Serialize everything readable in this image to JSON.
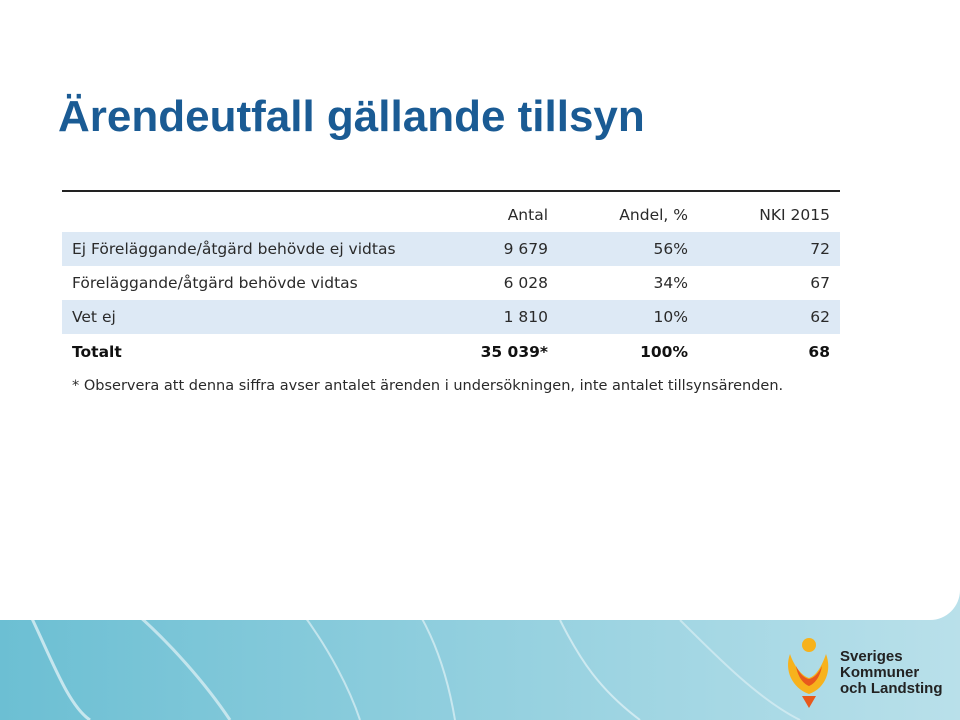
{
  "slide": {
    "title": "Ärendeutfall gällande tillsyn",
    "table": {
      "headers": [
        "Antal",
        "Andel, %",
        "NKI 2015"
      ],
      "rows": [
        {
          "label": "Ej Föreläggande/åtgärd behövde ej vidtas",
          "antal": "9 679",
          "andel": "56%",
          "nki": "72"
        },
        {
          "label": "Föreläggande/åtgärd behövde vidtas",
          "antal": "6 028",
          "andel": "34%",
          "nki": "67"
        },
        {
          "label": "Vet ej",
          "antal": "1 810",
          "andel": "10%",
          "nki": "62"
        }
      ],
      "total": {
        "label": "Totalt",
        "antal": "35 039*",
        "andel": "100%",
        "nki": "68"
      }
    },
    "footnote": "* Observera att denna siffra avser antalet ärenden i undersökningen, inte antalet tillsynsärenden.",
    "logo": {
      "line1": "Sveriges",
      "line2": "Kommuner",
      "line3": "och Landsting",
      "colors": {
        "yellow": "#f7b21c",
        "orange": "#e8591c"
      }
    },
    "colors": {
      "title": "#1a5b94",
      "row_shade": "#dde9f5",
      "background": "#7fc6d6"
    }
  }
}
